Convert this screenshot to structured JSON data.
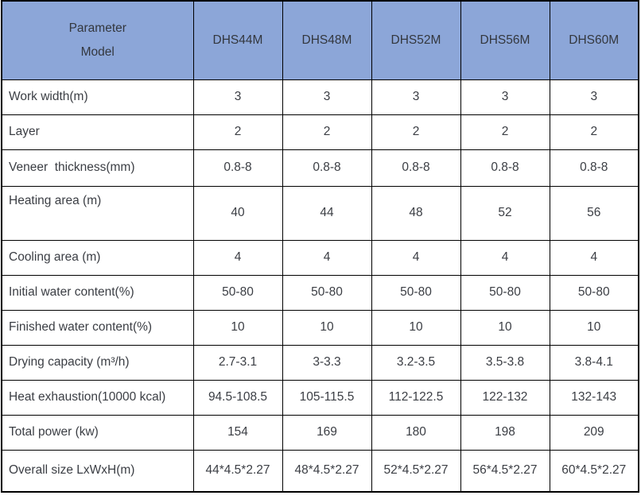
{
  "table": {
    "colors": {
      "header_bg": "#8CA6D8",
      "border": "#000000",
      "text": "#3B3E44",
      "row_bg": "#FFFFFF"
    },
    "header": {
      "corner_line1": "Parameter",
      "corner_line2": "Model",
      "models": [
        "DHS44M",
        "DHS48M",
        "DHS52M",
        "DHS56M",
        "DHS60M"
      ]
    },
    "rows": [
      {
        "label": "Work width(m)",
        "values": [
          "3",
          "3",
          "3",
          "3",
          "3"
        ]
      },
      {
        "label": "Layer",
        "values": [
          "2",
          "2",
          "2",
          "2",
          "2"
        ]
      },
      {
        "label": "Veneer  thickness(mm)",
        "values": [
          "0.8-8",
          "0.8-8",
          "0.8-8",
          "0.8-8",
          "0.8-8"
        ]
      },
      {
        "label": "Heating area (m)",
        "values": [
          "40",
          "44",
          "48",
          "52",
          "56"
        ]
      },
      {
        "label": "Cooling area (m)",
        "values": [
          "4",
          "4",
          "4",
          "4",
          "4"
        ]
      },
      {
        "label": "Initial water content(%)",
        "values": [
          "50-80",
          "50-80",
          "50-80",
          "50-80",
          "50-80"
        ]
      },
      {
        "label": "Finished water content(%)",
        "values": [
          "10",
          "10",
          "10",
          "10",
          "10"
        ]
      },
      {
        "label": "Drying capacity (m³/h)",
        "values": [
          "2.7-3.1",
          "3-3.3",
          "3.2-3.5",
          "3.5-3.8",
          "3.8-4.1"
        ]
      },
      {
        "label": "Heat exhaustion(10000 kcal)",
        "values": [
          "94.5-108.5",
          "105-115.5",
          "112-122.5",
          "122-132",
          "132-143"
        ]
      },
      {
        "label": "Total power (kw)",
        "values": [
          "154",
          "169",
          "180",
          "198",
          "209"
        ]
      },
      {
        "label": "Overall size LxWxH(m)",
        "values": [
          "44*4.5*2.27",
          "48*4.5*2.27",
          "52*4.5*2.27",
          "56*4.5*2.27",
          "60*4.5*2.27"
        ]
      }
    ]
  }
}
